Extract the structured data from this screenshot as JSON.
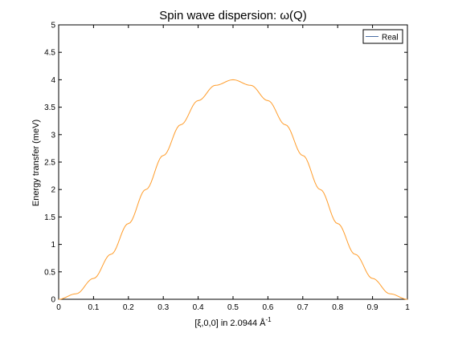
{
  "chart_data": {
    "type": "line",
    "title": "Spin wave dispersion: ω(Q)",
    "xlabel": "[ξ,0,0] in 2.0944 Å",
    "xlabel_superscript": "-1",
    "ylabel": "Energy transfer (meV)",
    "xlim": [
      0,
      1
    ],
    "ylim": [
      0,
      5
    ],
    "x_ticks": [
      "0",
      "0.1",
      "0.2",
      "0.3",
      "0.4",
      "0.5",
      "0.6",
      "0.7",
      "0.8",
      "0.9",
      "1"
    ],
    "y_ticks": [
      "0",
      "0.5",
      "1",
      "1.5",
      "2",
      "2.5",
      "3",
      "3.5",
      "4",
      "4.5",
      "5"
    ],
    "grid": false,
    "legend": {
      "placement": "top-right",
      "entries": [
        "Real"
      ],
      "line_color": "#4a6fa5"
    },
    "series": [
      {
        "name": "Real",
        "color": "#ff9c2a",
        "x": [
          0,
          0.05,
          0.1,
          0.15,
          0.2,
          0.25,
          0.3,
          0.35,
          0.4,
          0.45,
          0.5,
          0.55,
          0.6,
          0.65,
          0.7,
          0.75,
          0.8,
          0.85,
          0.9,
          0.95,
          1
        ],
        "y": [
          0,
          0.1,
          0.38,
          0.82,
          1.38,
          2.0,
          2.62,
          3.18,
          3.62,
          3.9,
          4.0,
          3.9,
          3.62,
          3.18,
          2.62,
          2.0,
          1.38,
          0.82,
          0.38,
          0.1,
          0
        ]
      }
    ]
  }
}
